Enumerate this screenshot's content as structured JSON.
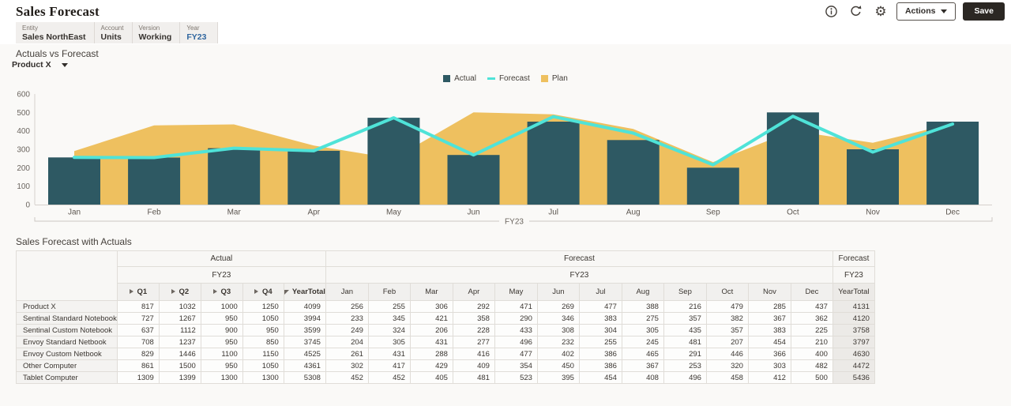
{
  "header": {
    "title": "Sales Forecast",
    "actions_label": "Actions",
    "save_label": "Save"
  },
  "pov": {
    "segments": [
      {
        "label": "Entity",
        "value": "Sales NorthEast",
        "selected": false
      },
      {
        "label": "Account",
        "value": "Units",
        "selected": false
      },
      {
        "label": "Version",
        "value": "Working",
        "selected": false
      },
      {
        "label": "Year",
        "value": "FY23",
        "selected": true
      }
    ]
  },
  "chart_section": {
    "title": "Actuals vs Forecast",
    "dimension_selector": "Product X"
  },
  "chart_data": {
    "type": "combo",
    "x": [
      "Jan",
      "Feb",
      "Mar",
      "Apr",
      "May",
      "Jun",
      "Jul",
      "Aug",
      "Sep",
      "Oct",
      "Nov",
      "Dec"
    ],
    "series": [
      {
        "name": "Actual",
        "type": "bar",
        "color": "#2e5963",
        "values": [
          256,
          255,
          306,
          292,
          471,
          269,
          450,
          350,
          200,
          500,
          300,
          450
        ]
      },
      {
        "name": "Forecast",
        "type": "line",
        "color": "#4fe3d8",
        "values": [
          256,
          255,
          306,
          292,
          471,
          269,
          477,
          388,
          216,
          479,
          285,
          437
        ]
      },
      {
        "name": "Plan",
        "type": "area",
        "color": "#eec05f",
        "values": [
          290,
          430,
          435,
          320,
          250,
          500,
          490,
          410,
          230,
          400,
          335,
          440
        ]
      }
    ],
    "ylim": [
      0,
      600
    ],
    "yticks": [
      0,
      100,
      200,
      300,
      400,
      500,
      600
    ],
    "group_label": "FY23",
    "legend_position": "top",
    "grid": false
  },
  "table_section": {
    "title": "Sales Forecast with Actuals",
    "column_groups": [
      {
        "label": "Actual",
        "year": "FY23",
        "span": 5
      },
      {
        "label": "Forecast",
        "year": "FY23",
        "span": 12
      },
      {
        "label": "Forecast",
        "year": "FY23",
        "span": 1
      }
    ],
    "columns": [
      {
        "label": "Q1",
        "icon": "expand",
        "bold": true
      },
      {
        "label": "Q2",
        "icon": "expand",
        "bold": true
      },
      {
        "label": "Q3",
        "icon": "expand",
        "bold": true
      },
      {
        "label": "Q4",
        "icon": "expand",
        "bold": true
      },
      {
        "label": "YearTotal",
        "icon": "collapse",
        "bold": true
      },
      {
        "label": "Jan"
      },
      {
        "label": "Feb"
      },
      {
        "label": "Mar"
      },
      {
        "label": "Apr"
      },
      {
        "label": "May"
      },
      {
        "label": "Jun"
      },
      {
        "label": "Jul"
      },
      {
        "label": "Aug"
      },
      {
        "label": "Sep"
      },
      {
        "label": "Oct"
      },
      {
        "label": "Nov"
      },
      {
        "label": "Dec"
      },
      {
        "label": "YearTotal",
        "total": true
      }
    ],
    "rows": [
      {
        "name": "Product X",
        "values": [
          817,
          1032,
          1000,
          1250,
          4099,
          256,
          255,
          306,
          292,
          471,
          269,
          477,
          388,
          216,
          479,
          285,
          437,
          4131
        ]
      },
      {
        "name": "Sentinal Standard Notebook",
        "values": [
          727,
          1267,
          950,
          1050,
          3994,
          233,
          345,
          421,
          358,
          290,
          346,
          383,
          275,
          357,
          382,
          367,
          362,
          4120
        ]
      },
      {
        "name": "Sentinal Custom Notebook",
        "values": [
          637,
          1112,
          900,
          950,
          3599,
          249,
          324,
          206,
          228,
          433,
          308,
          304,
          305,
          435,
          357,
          383,
          225,
          3758
        ]
      },
      {
        "name": "Envoy Standard Netbook",
        "values": [
          708,
          1237,
          950,
          850,
          3745,
          204,
          305,
          431,
          277,
          496,
          232,
          255,
          245,
          481,
          207,
          454,
          210,
          3797
        ]
      },
      {
        "name": "Envoy Custom Netbook",
        "values": [
          829,
          1446,
          1100,
          1150,
          4525,
          261,
          431,
          288,
          416,
          477,
          402,
          386,
          465,
          291,
          446,
          366,
          400,
          4630
        ]
      },
      {
        "name": "Other Computer",
        "values": [
          861,
          1500,
          950,
          1050,
          4361,
          302,
          417,
          429,
          409,
          354,
          450,
          386,
          367,
          253,
          320,
          303,
          482,
          4472
        ]
      },
      {
        "name": "Tablet Computer",
        "values": [
          1309,
          1399,
          1300,
          1300,
          5308,
          452,
          452,
          405,
          481,
          523,
          395,
          454,
          408,
          496,
          458,
          412,
          500,
          5436
        ]
      }
    ]
  },
  "colors": {
    "actual": "#2e5963",
    "forecast": "#4fe3d8",
    "plan": "#eec05f",
    "pov_selected": "#31679f",
    "save_button_bg": "#2b2723"
  }
}
